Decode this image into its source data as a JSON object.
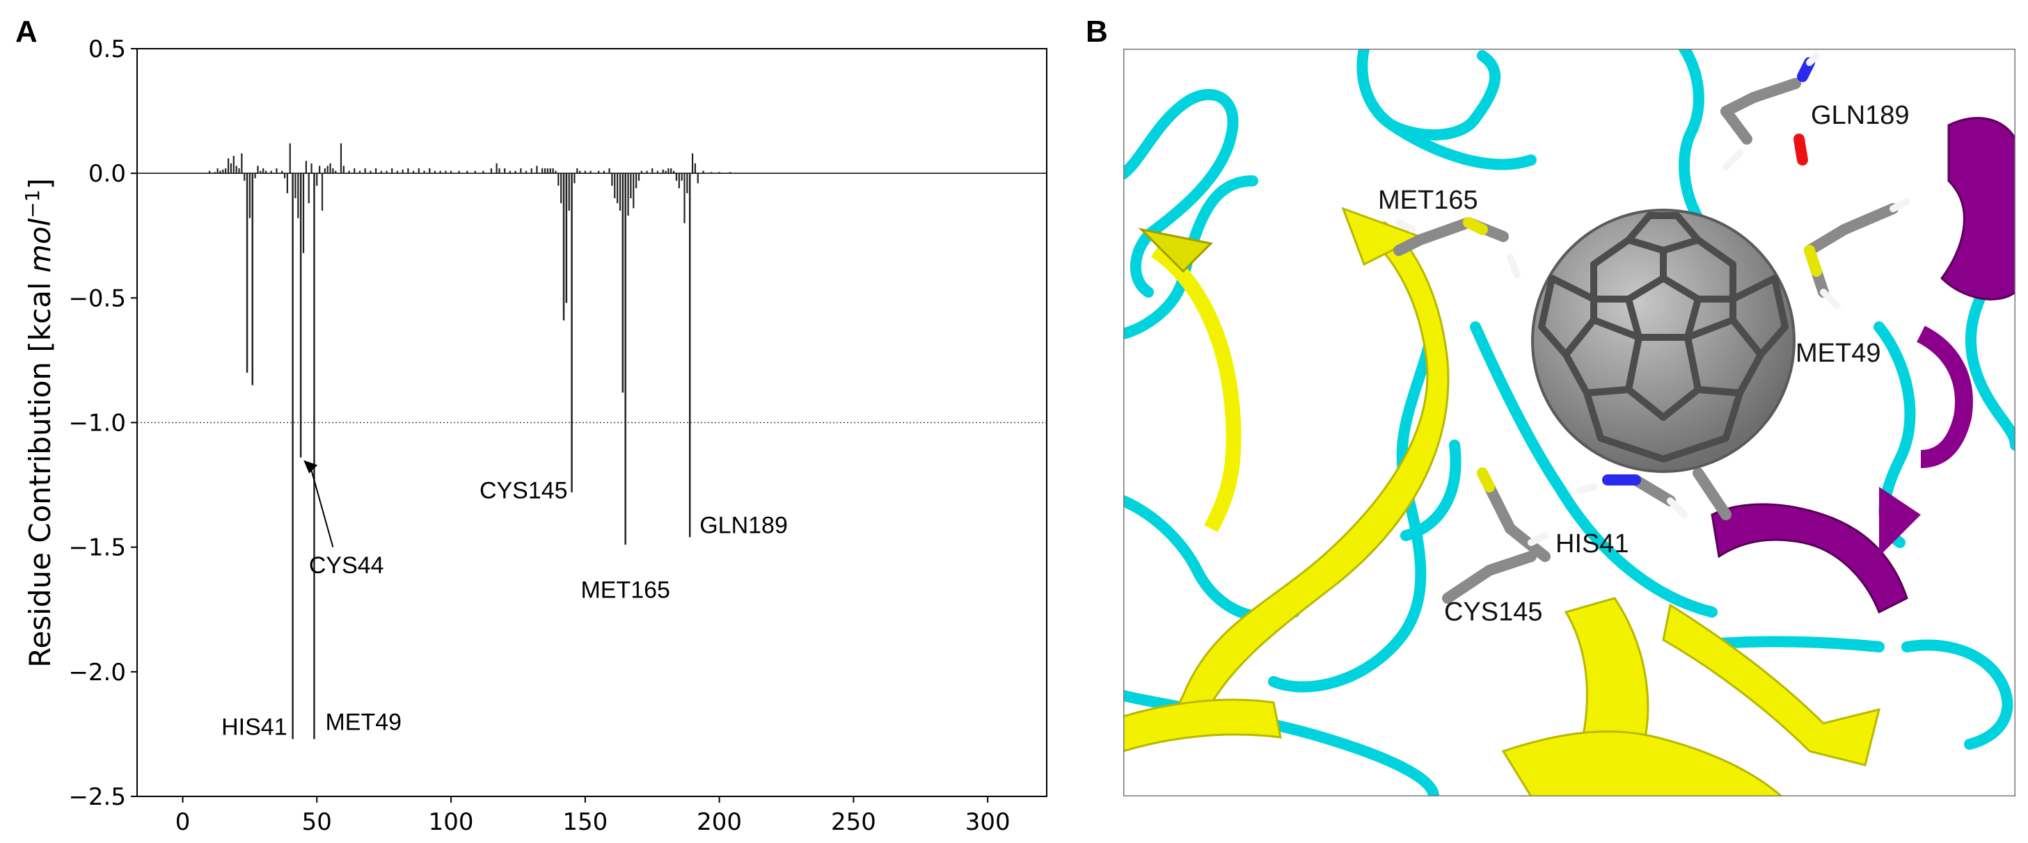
{
  "panels": {
    "a_letter": "A",
    "b_letter": "B"
  },
  "chart_data": {
    "type": "bar",
    "title": "",
    "xlabel": "",
    "ylabel": "Residue Contribution [kcal mol⁻¹]",
    "ylabel_parts": {
      "main": "Residue Contribution [kcal ",
      "italic": "mol",
      "sup": "−1",
      "close": "]"
    },
    "xlim": [
      -17,
      322
    ],
    "ylim": [
      -2.5,
      0.5
    ],
    "xticks": [
      0,
      50,
      100,
      150,
      200,
      250,
      300
    ],
    "yticks": [
      0.5,
      0.0,
      -0.5,
      -1.0,
      -1.5,
      -2.0,
      -2.5
    ],
    "ytick_labels": [
      "0.5",
      "0.0",
      "−0.5",
      "−1.0",
      "−1.5",
      "−2.0",
      "−2.5"
    ],
    "reference_line": {
      "y": -1.0,
      "style": "dotted"
    },
    "grid": false,
    "bar_color": "#222222",
    "points": [
      [
        10,
        0.01
      ],
      [
        12,
        0.005
      ],
      [
        13,
        0.02
      ],
      [
        14,
        0.01
      ],
      [
        15,
        0.015
      ],
      [
        16,
        0.02
      ],
      [
        17,
        0.06
      ],
      [
        18,
        0.04
      ],
      [
        19,
        0.07
      ],
      [
        20,
        0.03
      ],
      [
        21,
        0.02
      ],
      [
        22,
        0.08
      ],
      [
        23,
        -0.03
      ],
      [
        24,
        -0.8
      ],
      [
        25,
        -0.18
      ],
      [
        26,
        -0.85
      ],
      [
        27,
        -0.02
      ],
      [
        28,
        0.03
      ],
      [
        29,
        0.01
      ],
      [
        30,
        0.02
      ],
      [
        31,
        0.01
      ],
      [
        33,
        0.01
      ],
      [
        35,
        0.02
      ],
      [
        37,
        0.01
      ],
      [
        38,
        -0.02
      ],
      [
        39,
        -0.08
      ],
      [
        40,
        0.12
      ],
      [
        41,
        -2.27
      ],
      [
        42,
        -0.1
      ],
      [
        43,
        -0.18
      ],
      [
        44,
        -1.14
      ],
      [
        45,
        -0.32
      ],
      [
        46,
        0.05
      ],
      [
        47,
        -0.12
      ],
      [
        48,
        0.04
      ],
      [
        49,
        -2.27
      ],
      [
        50,
        -0.05
      ],
      [
        51,
        0.03
      ],
      [
        52,
        -0.15
      ],
      [
        53,
        0.02
      ],
      [
        54,
        0.03
      ],
      [
        55,
        0.04
      ],
      [
        56,
        0.02
      ],
      [
        57,
        0.01
      ],
      [
        59,
        0.12
      ],
      [
        60,
        0.03
      ],
      [
        62,
        0.01
      ],
      [
        64,
        0.02
      ],
      [
        66,
        0.01
      ],
      [
        68,
        0.02
      ],
      [
        70,
        0.01
      ],
      [
        72,
        0.02
      ],
      [
        74,
        0.01
      ],
      [
        76,
        0.01
      ],
      [
        78,
        0.02
      ],
      [
        80,
        0.01
      ],
      [
        82,
        0.015
      ],
      [
        84,
        0.02
      ],
      [
        86,
        0.01
      ],
      [
        88,
        0.02
      ],
      [
        90,
        0.01
      ],
      [
        92,
        0.02
      ],
      [
        94,
        0.01
      ],
      [
        96,
        0.01
      ],
      [
        98,
        0.01
      ],
      [
        100,
        0.01
      ],
      [
        103,
        0.01
      ],
      [
        106,
        0.01
      ],
      [
        109,
        0.01
      ],
      [
        112,
        0.01
      ],
      [
        115,
        0.02
      ],
      [
        117,
        0.04
      ],
      [
        118,
        0.02
      ],
      [
        120,
        0.02
      ],
      [
        122,
        0.01
      ],
      [
        124,
        0.01
      ],
      [
        126,
        0.02
      ],
      [
        128,
        0.01
      ],
      [
        130,
        0.02
      ],
      [
        132,
        0.03
      ],
      [
        134,
        0.02
      ],
      [
        135,
        0.02
      ],
      [
        136,
        0.02
      ],
      [
        137,
        0.02
      ],
      [
        138,
        0.02
      ],
      [
        139,
        0.01
      ],
      [
        140,
        -0.05
      ],
      [
        141,
        -0.12
      ],
      [
        142,
        -0.59
      ],
      [
        143,
        -0.52
      ],
      [
        144,
        -0.15
      ],
      [
        145,
        -1.28
      ],
      [
        146,
        -0.04
      ],
      [
        147,
        0.02
      ],
      [
        148,
        0.01
      ],
      [
        150,
        0.01
      ],
      [
        152,
        0.01
      ],
      [
        155,
        0.01
      ],
      [
        157,
        0.01
      ],
      [
        159,
        0.02
      ],
      [
        160,
        -0.05
      ],
      [
        161,
        -0.1
      ],
      [
        162,
        -0.12
      ],
      [
        163,
        -0.15
      ],
      [
        164,
        -0.88
      ],
      [
        165,
        -1.49
      ],
      [
        166,
        -0.17
      ],
      [
        167,
        -0.1
      ],
      [
        168,
        -0.14
      ],
      [
        169,
        -0.06
      ],
      [
        170,
        -0.03
      ],
      [
        171,
        0.01
      ],
      [
        173,
        0.01
      ],
      [
        175,
        0.02
      ],
      [
        177,
        0.01
      ],
      [
        179,
        0.015
      ],
      [
        180,
        0.01
      ],
      [
        181,
        0.02
      ],
      [
        182,
        0.02
      ],
      [
        183,
        0.01
      ],
      [
        184,
        -0.03
      ],
      [
        185,
        -0.06
      ],
      [
        186,
        -0.03
      ],
      [
        187,
        -0.2
      ],
      [
        188,
        -0.08
      ],
      [
        189,
        -1.46
      ],
      [
        190,
        0.08
      ],
      [
        191,
        0.04
      ],
      [
        192,
        -0.04
      ],
      [
        194,
        0.01
      ],
      [
        197,
        0.005
      ],
      [
        200,
        0.005
      ],
      [
        204,
        0.005
      ]
    ],
    "annotations": [
      {
        "text": "HIS41",
        "x": 41,
        "y": -2.27
      },
      {
        "text": "MET49",
        "x": 49,
        "y": -2.27
      },
      {
        "text": "CYS44",
        "x": 44,
        "y": -1.14,
        "arrow": true
      },
      {
        "text": "CYS145",
        "x": 145,
        "y": -1.28
      },
      {
        "text": "MET165",
        "x": 165,
        "y": -1.49
      },
      {
        "text": "GLN189",
        "x": 189,
        "y": -1.46
      }
    ]
  },
  "molecule_view": {
    "description_colors": {
      "loop": "#00d8e0",
      "sheet": "#f2f200",
      "helix": "#8b008b",
      "carbon": "#8a8a8a",
      "hydrogen": "#ffffff",
      "nitrogen": "#2a2aee",
      "oxygen": "#ee1111",
      "sulfur": "#e4e400"
    },
    "labels": [
      {
        "text": "GLN189"
      },
      {
        "text": "MET165"
      },
      {
        "text": "MET49"
      },
      {
        "text": "HIS41"
      },
      {
        "text": "CYS145"
      }
    ]
  }
}
